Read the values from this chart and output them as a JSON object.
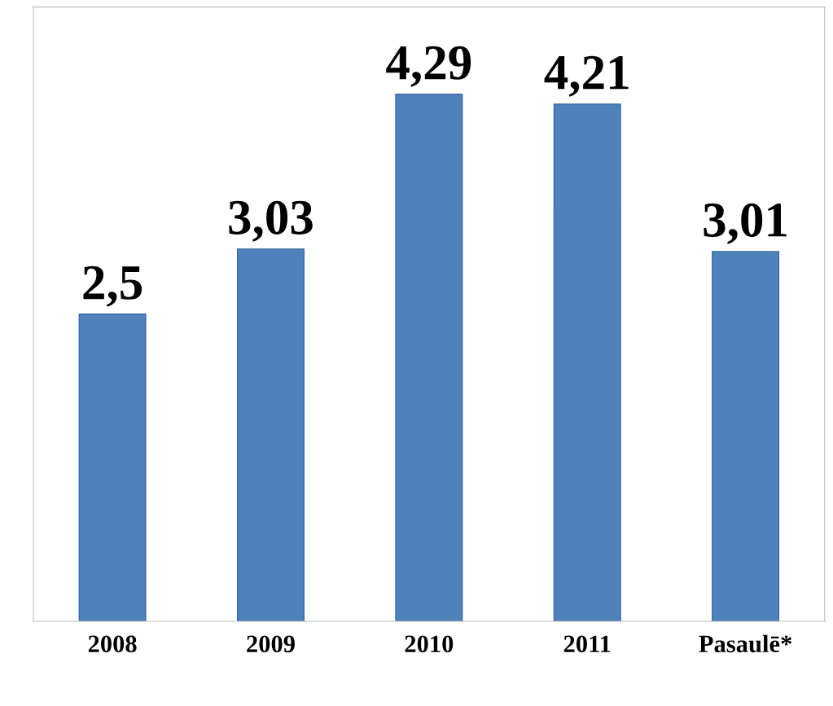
{
  "chart_data": {
    "type": "bar",
    "categories": [
      "2008",
      "2009",
      "2010",
      "2011",
      "Pasaulē*"
    ],
    "values": [
      2.5,
      3.03,
      4.29,
      4.21,
      3.01
    ],
    "value_labels": [
      "2,5",
      "3,03",
      "4,29",
      "4,21",
      "3,01"
    ],
    "color": "#4f81bd",
    "ylim": [
      0,
      5
    ],
    "tick_labels": "x",
    "grid": false,
    "legend": false
  }
}
